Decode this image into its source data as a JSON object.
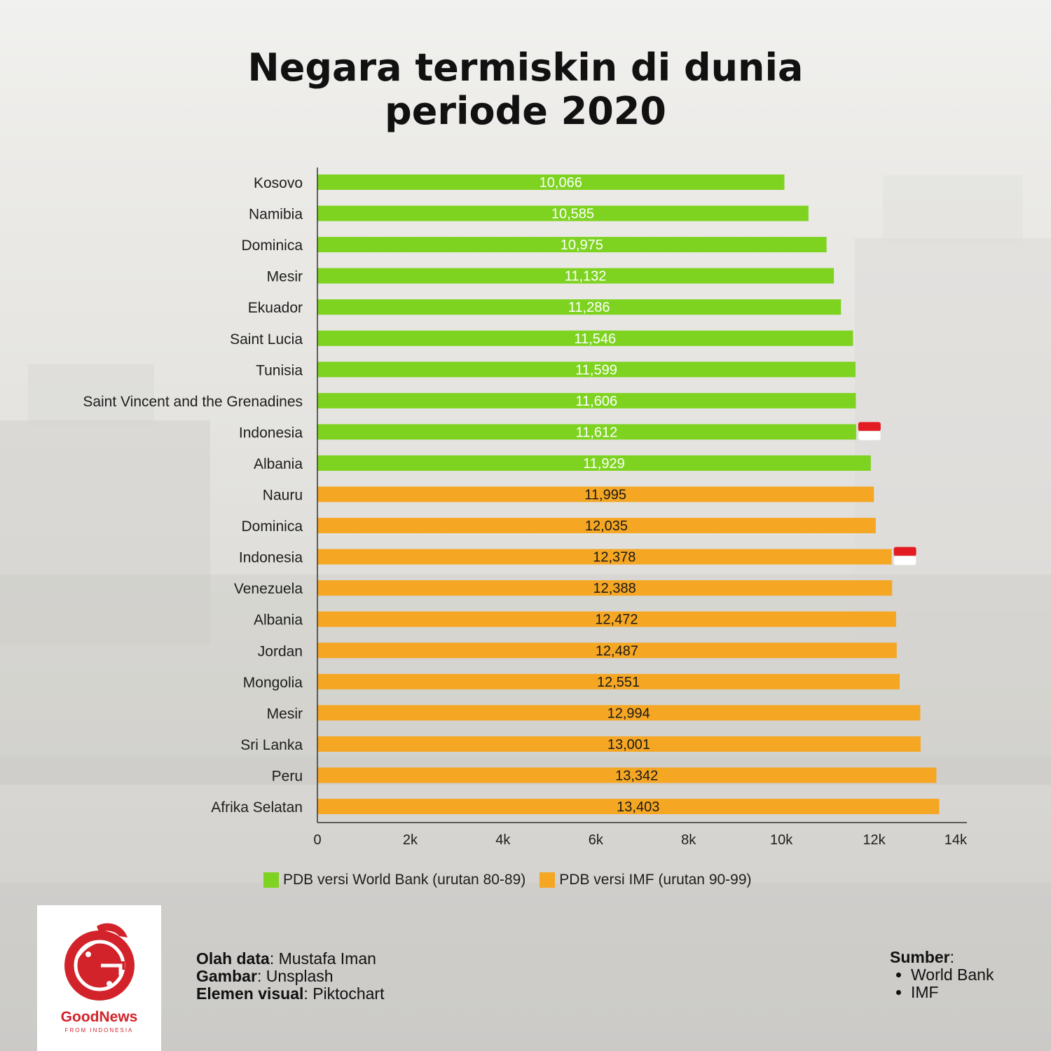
{
  "title_line1": "Negara termiskin di dunia",
  "title_line2": "periode 2020",
  "colors": {
    "world_bank": "#7ed321",
    "imf": "#f5a623",
    "flag_red": "#e31b23"
  },
  "chart_data": {
    "type": "bar",
    "orientation": "horizontal",
    "categories": [
      "Kosovo",
      "Namibia",
      "Dominica",
      "Mesir",
      "Ekuador",
      "Saint Lucia",
      "Tunisia",
      "Saint Vincent and the Grenadines",
      "Indonesia",
      "Albania",
      "Nauru",
      "Dominica",
      "Indonesia",
      "Venezuela",
      "Albania",
      "Jordan",
      "Mongolia",
      "Mesir",
      "Sri Lanka",
      "Peru",
      "Afrika Selatan"
    ],
    "values": [
      10066,
      10585,
      10975,
      11132,
      11286,
      11546,
      11599,
      11606,
      11612,
      11929,
      11995,
      12035,
      12378,
      12388,
      12472,
      12487,
      12551,
      12994,
      13001,
      13342,
      13403
    ],
    "value_labels": [
      "10,066",
      "10,585",
      "10,975",
      "11,132",
      "11,286",
      "11,546",
      "11,599",
      "11,606",
      "11,612",
      "11,929",
      "11,995",
      "12,035",
      "12,378",
      "12,388",
      "12,472",
      "12,487",
      "12,551",
      "12,994",
      "13,001",
      "13,342",
      "13,403"
    ],
    "bar_series": [
      "wb",
      "wb",
      "wb",
      "wb",
      "wb",
      "wb",
      "wb",
      "wb",
      "wb",
      "wb",
      "imf",
      "imf",
      "imf",
      "imf",
      "imf",
      "imf",
      "imf",
      "imf",
      "imf",
      "imf",
      "imf"
    ],
    "flag_marked": [
      false,
      false,
      false,
      false,
      false,
      false,
      false,
      false,
      true,
      false,
      false,
      false,
      true,
      false,
      false,
      false,
      false,
      false,
      false,
      false,
      false
    ],
    "series": [
      {
        "name": "PDB versi World Bank (urutan 80-89)",
        "color": "#7ed321"
      },
      {
        "name": "PDB versi IMF (urutan 90-99)",
        "color": "#f5a623"
      }
    ],
    "xlim": [
      0,
      14000
    ],
    "x_ticks": [
      0,
      2000,
      4000,
      6000,
      8000,
      10000,
      12000,
      14000
    ],
    "x_tick_labels": [
      "0",
      "2k",
      "4k",
      "6k",
      "8k",
      "10k",
      "12k",
      "14k"
    ],
    "legend_position": "bottom",
    "grid": false
  },
  "legend": {
    "wb_label": "PDB versi World Bank (urutan 80-89)",
    "imf_label": "PDB versi IMF (urutan 90-99)"
  },
  "logo": {
    "name": "GoodNews",
    "subtitle": "FROM INDONESIA",
    "icon": "garuda-logo-icon"
  },
  "credits": {
    "olah_label": "Olah data",
    "olah_value": ": Mustafa Iman",
    "gambar_label": "Gambar",
    "gambar_value": ": Unsplash",
    "elemen_label": "Elemen visual",
    "elemen_value": ": Piktochart"
  },
  "sources": {
    "label": "Sumber",
    "colon": ":",
    "items": [
      "World Bank",
      "IMF"
    ]
  }
}
